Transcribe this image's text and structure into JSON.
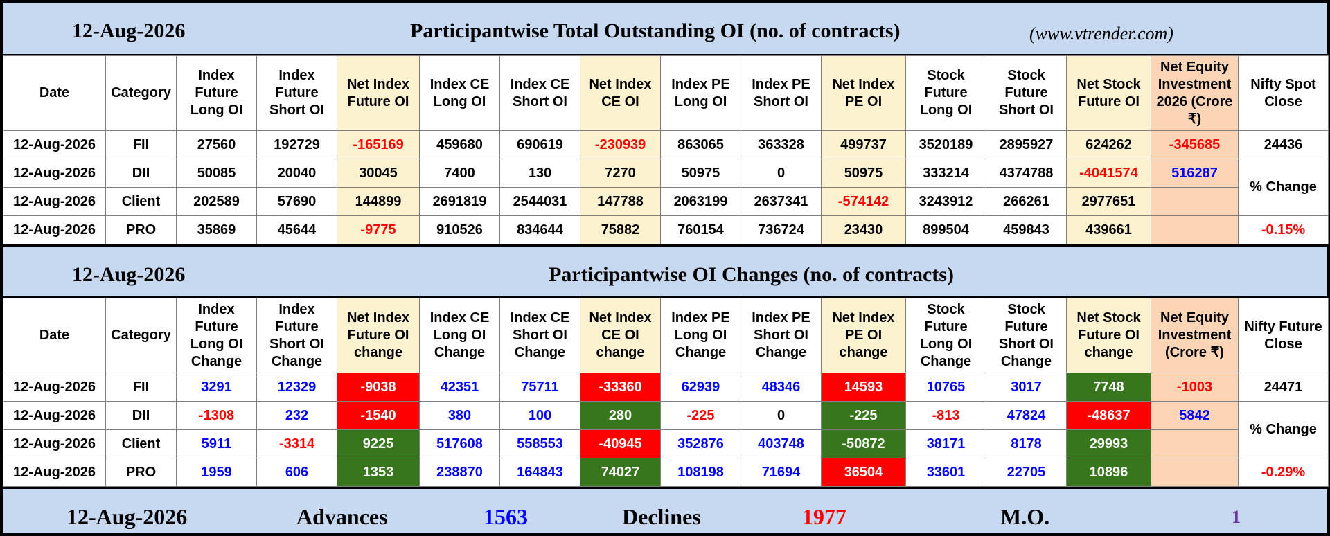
{
  "section1": {
    "date": "12-Aug-2026",
    "title": "Participantwise Total Outstanding OI (no. of contracts)",
    "site": "(www.vtrender.com)",
    "headers": [
      "Date",
      "Category",
      "Index Future Long OI",
      "Index Future Short OI",
      "Net Index Future OI",
      "Index CE Long OI",
      "Index CE Short OI",
      "Net Index CE OI",
      "Index PE Long OI",
      "Index PE Short OI",
      "Net Index PE OI",
      "Stock Future Long OI",
      "Stock Future Short OI",
      "Net Stock Future OI",
      "Net Equity Investment 2026 (Crore ₹)",
      "Nifty Spot Close"
    ],
    "rows": [
      [
        "12-Aug-2026",
        "FII",
        "27560",
        "192729",
        "-165169",
        "459680",
        "690619",
        "-230939",
        "863065",
        "363328",
        "499737",
        "3520189",
        "2895927",
        "624262",
        "-345685",
        "24436"
      ],
      [
        "12-Aug-2026",
        "DII",
        "50085",
        "20040",
        "30045",
        "7400",
        "130",
        "7270",
        "50975",
        "0",
        "50975",
        "333214",
        "4374788",
        "-4041574",
        "516287",
        ""
      ],
      [
        "12-Aug-2026",
        "Client",
        "202589",
        "57690",
        "144899",
        "2691819",
        "2544031",
        "147788",
        "2063199",
        "2637341",
        "-574142",
        "3243912",
        "266261",
        "2977651",
        "",
        ""
      ],
      [
        "12-Aug-2026",
        "PRO",
        "35869",
        "45644",
        "-9775",
        "910526",
        "834644",
        "75882",
        "760154",
        "736724",
        "23430",
        "899504",
        "459843",
        "439661",
        "",
        "-0.15%"
      ]
    ],
    "pct_label": "% Change"
  },
  "section2": {
    "date": "12-Aug-2026",
    "title": "Participantwise OI Changes (no. of contracts)",
    "headers": [
      "Date",
      "Category",
      "Index Future Long OI Change",
      "Index Future Short OI Change",
      "Net Index Future OI change",
      "Index CE Long OI Change",
      "Index CE Short OI Change",
      "Net Index CE OI change",
      "Index PE Long OI Change",
      "Index PE Short OI Change",
      "Net Index PE OI change",
      "Stock Future Long OI Change",
      "Stock Future Short OI Change",
      "Net Stock Future OI change",
      "Net Equity Investment (Crore ₹)",
      "Nifty Future Close"
    ],
    "rows": [
      [
        "12-Aug-2026",
        "FII",
        "3291",
        "12329",
        "-9038",
        "42351",
        "75711",
        "-33360",
        "62939",
        "48346",
        "14593",
        "10765",
        "3017",
        "7748",
        "-1003",
        "24471"
      ],
      [
        "12-Aug-2026",
        "DII",
        "-1308",
        "232",
        "-1540",
        "380",
        "100",
        "280",
        "-225",
        "0",
        "-225",
        "-813",
        "47824",
        "-48637",
        "5842",
        ""
      ],
      [
        "12-Aug-2026",
        "Client",
        "5911",
        "-3314",
        "9225",
        "517608",
        "558553",
        "-40945",
        "352876",
        "403748",
        "-50872",
        "38171",
        "8178",
        "29993",
        "",
        ""
      ],
      [
        "12-Aug-2026",
        "PRO",
        "1959",
        "606",
        "1353",
        "238870",
        "164843",
        "74027",
        "108198",
        "71694",
        "36504",
        "33601",
        "22705",
        "10896",
        "",
        "-0.29%"
      ]
    ],
    "pct_label": "% Change"
  },
  "footer": {
    "date": "12-Aug-2026",
    "advances_label": "Advances",
    "advances": "1563",
    "declines_label": "Declines",
    "declines": "1977",
    "mo_label": "M.O.",
    "mo": "1"
  },
  "colors": {
    "background": "#c6d9f1",
    "net_column": "#fdf2d0",
    "equity_column": "#fbd5b5",
    "positive_fill": "#38761d",
    "negative_fill": "#ff0000",
    "positive_text": "#0000ff",
    "negative_text": "#ff0000"
  }
}
